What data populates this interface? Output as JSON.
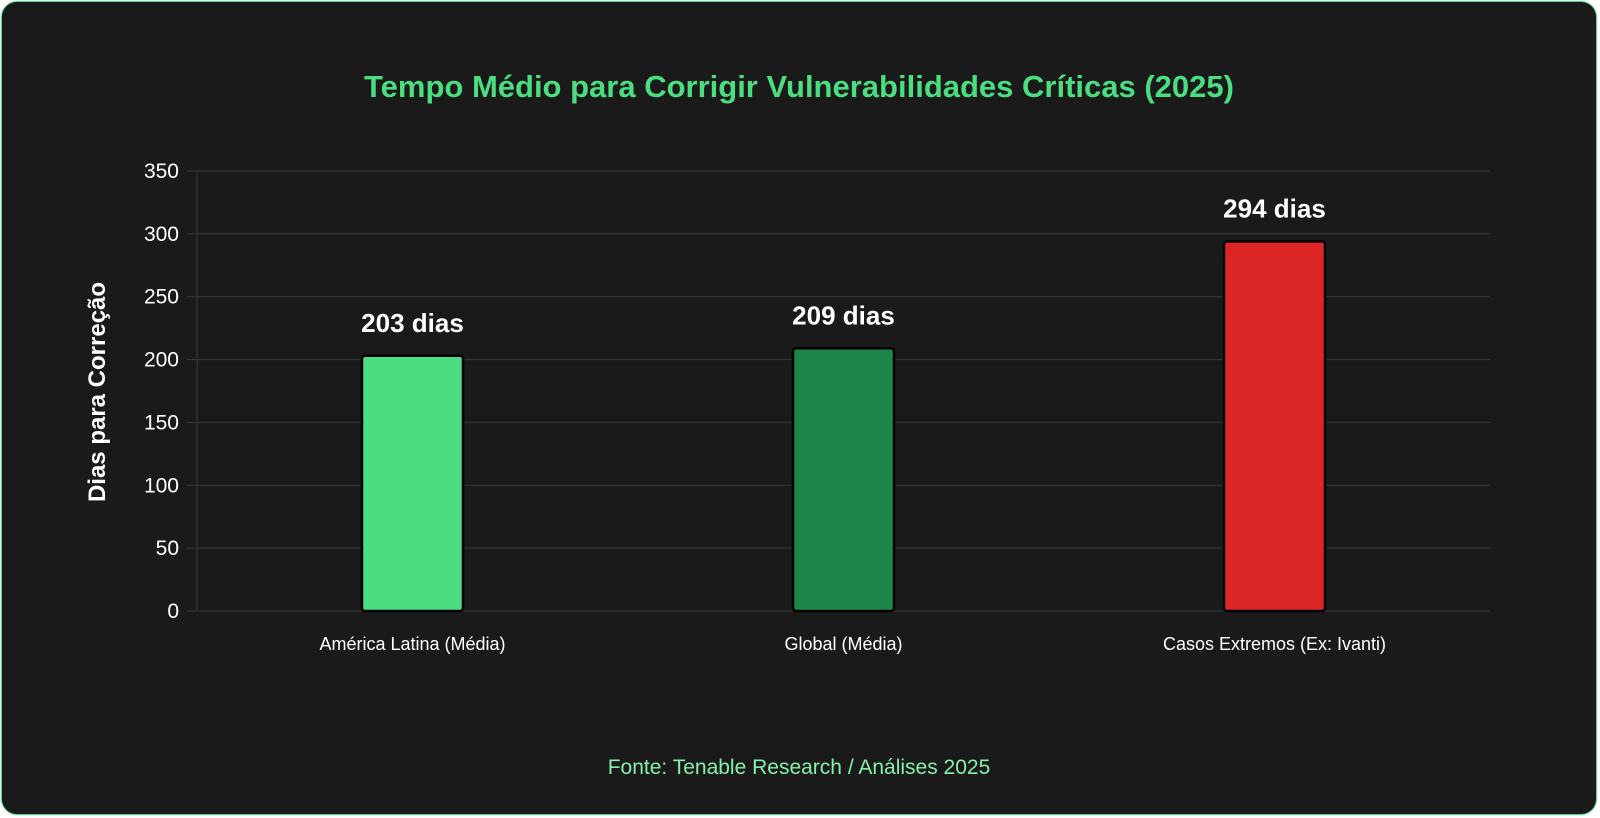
{
  "chart_data": {
    "type": "bar",
    "title": "Tempo Médio para Corrigir Vulnerabilidades Críticas (2025)",
    "ylabel": "Dias para Correção",
    "xlabel": "",
    "ylim": [
      0,
      350
    ],
    "yticks": [
      "0",
      "50",
      "100",
      "150",
      "200",
      "250",
      "300",
      "350"
    ],
    "categories": [
      "América Latina (Média)",
      "Global (Média)",
      "Casos Extremos (Ex: Ivanti)"
    ],
    "values": [
      203,
      209,
      294
    ],
    "data_labels": [
      "203 dias",
      "209 dias",
      "294 dias"
    ],
    "bar_colors": [
      "#4ade80",
      "#1e854b",
      "#dc2626"
    ],
    "grid": true,
    "legend": "none"
  },
  "source": "Fonte: Tenable Research / Análises 2025",
  "colors": {
    "background": "#1a1a1a",
    "accent": "#4ade80",
    "source_text": "#86efac",
    "grid": "#3a3a3a",
    "axis_text": "#ffffff"
  }
}
